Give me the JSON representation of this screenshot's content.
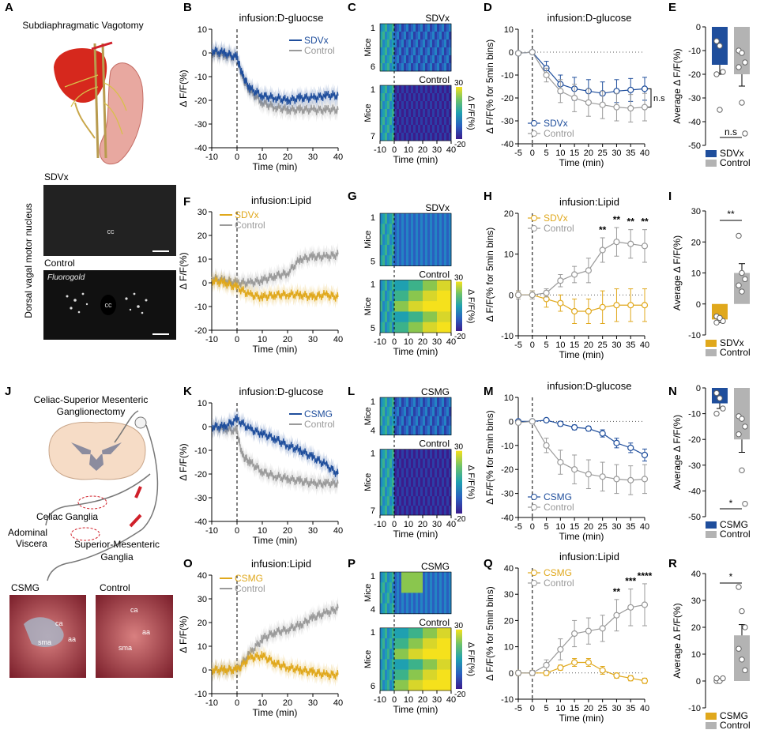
{
  "panel_letters": [
    "A",
    "B",
    "C",
    "D",
    "E",
    "F",
    "G",
    "H",
    "I",
    "J",
    "K",
    "L",
    "M",
    "N",
    "O",
    "P",
    "Q",
    "R"
  ],
  "colors": {
    "sdvx": "#1f4e9c",
    "csmg": "#1f4e9c",
    "lipid_exp": "#e0a81c",
    "control": "#9a9a9a",
    "control_bar": "#b3b3b3"
  },
  "panel_A": {
    "title": "Subdiaphragmatic Vagotomy",
    "micrograph_sdvx_label": "SDVx",
    "micrograph_control_label": "Control",
    "side_label": "Dorsal vagal motor nucleus",
    "cc_label": "cc",
    "fluorogold_label": "Fluorogold"
  },
  "panel_J": {
    "title_line1": "Celiac-Superior Mesenteric",
    "title_line2": "Ganglionectomy",
    "celiac_label": "Celiac Ganglia",
    "viscera_line1": "Adominal",
    "viscera_line2": "Viscera",
    "sm_line1": "Superior-Mesenteric",
    "sm_line2": "Ganglia",
    "photo_csmg_label": "CSMG",
    "photo_control_label": "Control",
    "photo_tags_csmg": [
      "ca",
      "sma",
      "aa"
    ],
    "photo_tags_control": [
      "ca",
      "aa",
      "sma"
    ]
  },
  "common": {
    "time_label": "Time (min)",
    "dff_label": "Δ F/F(%)",
    "bins_label": "Δ F/F(% for 5min bins)",
    "avg_label": "Average Δ F/F(%)",
    "mice_label": "Mice",
    "colorbar_label": "Δ F/F(%)",
    "colorbar_max": "30",
    "colorbar_min": "-20",
    "legend_control": "Control"
  },
  "chart_data": [
    {
      "id": "B",
      "type": "line",
      "title": "infusion:D-gluocse",
      "xlabel": "Time (min)",
      "ylabel": "Δ F/F(%)",
      "xlim": [
        -10,
        40
      ],
      "ylim": [
        -40,
        10
      ],
      "xticks": [
        -10,
        0,
        10,
        20,
        30,
        40
      ],
      "yticks": [
        -40,
        -30,
        -20,
        -10,
        0,
        10
      ],
      "series": [
        {
          "name": "SDVx",
          "x": [
            -10,
            -5,
            0,
            2,
            5,
            10,
            15,
            20,
            25,
            30,
            35,
            40
          ],
          "y": [
            1,
            0,
            -2,
            -9,
            -15,
            -18,
            -19,
            -20,
            -19,
            -19,
            -18,
            -18
          ]
        },
        {
          "name": "Control",
          "x": [
            -10,
            -5,
            0,
            2,
            5,
            10,
            15,
            20,
            25,
            30,
            35,
            40
          ],
          "y": [
            0,
            -1,
            -2,
            -10,
            -16,
            -21,
            -23,
            -24,
            -24,
            -24,
            -24,
            -24
          ]
        }
      ]
    },
    {
      "id": "C",
      "type": "heatmap",
      "groups": [
        {
          "name": "SDVx",
          "rows": 6
        },
        {
          "name": "Control",
          "rows": 7
        }
      ],
      "xlabel": "Time (min)",
      "ylabel": "Mice",
      "xlim": [
        -10,
        40
      ],
      "xticks": [
        -10,
        0,
        10,
        20,
        30,
        40
      ],
      "clim": [
        -20,
        30
      ]
    },
    {
      "id": "D",
      "type": "line",
      "title": "infusion:D-glucose",
      "xlabel": "Time (min)",
      "ylabel": "Δ F/F(% for 5min bins)",
      "xlim": [
        -5,
        40
      ],
      "ylim": [
        -40,
        10
      ],
      "xticks": [
        -5,
        0,
        5,
        10,
        15,
        20,
        25,
        30,
        35,
        40
      ],
      "yticks": [
        -40,
        -30,
        -20,
        -10,
        0,
        10
      ],
      "annotation": "n.s",
      "series": [
        {
          "name": "SDVx",
          "x": [
            -5,
            0,
            5,
            10,
            15,
            20,
            25,
            30,
            35,
            40
          ],
          "y": [
            -0.5,
            0,
            -7,
            -14,
            -16,
            -17,
            -18,
            -17,
            -16.5,
            -16
          ],
          "err": [
            0,
            0,
            3,
            4,
            5,
            5,
            5,
            5,
            5,
            5
          ]
        },
        {
          "name": "Control",
          "x": [
            -5,
            0,
            5,
            10,
            15,
            20,
            25,
            30,
            35,
            40
          ],
          "y": [
            -0.5,
            0,
            -10,
            -17,
            -20,
            -22,
            -23,
            -24,
            -24.5,
            -24
          ],
          "err": [
            0,
            0,
            3,
            5,
            6,
            6,
            6,
            6,
            6,
            6
          ]
        }
      ]
    },
    {
      "id": "E",
      "type": "bar",
      "ylabel": "Average Δ F/F(%)",
      "ylim": [
        -50,
        0
      ],
      "yticks": [
        -50,
        -40,
        -30,
        -20,
        -10,
        0
      ],
      "annotation": "n.s",
      "categories": [
        "SDVx",
        "Control"
      ],
      "values": [
        -16,
        -20
      ],
      "err": [
        4,
        5
      ],
      "points": [
        [
          -6,
          -8,
          -19,
          -20,
          -35
        ],
        [
          -10,
          -11,
          -15,
          -17,
          -32,
          -45
        ]
      ]
    },
    {
      "id": "F",
      "type": "line",
      "title": "infusion:Lipid",
      "xlabel": "Time (min)",
      "ylabel": "Δ F/F(%)",
      "xlim": [
        -10,
        40
      ],
      "ylim": [
        -20,
        30
      ],
      "xticks": [
        -10,
        0,
        10,
        20,
        30,
        40
      ],
      "yticks": [
        -20,
        -10,
        0,
        10,
        20,
        30
      ],
      "series": [
        {
          "name": "SDVx",
          "x": [
            -10,
            -5,
            0,
            5,
            10,
            15,
            20,
            25,
            30,
            35,
            40
          ],
          "y": [
            1,
            0,
            -2,
            -5,
            -6,
            -5,
            -5,
            -5,
            -6,
            -5,
            -6
          ]
        },
        {
          "name": "Control",
          "x": [
            -10,
            -5,
            0,
            5,
            10,
            15,
            20,
            25,
            30,
            35,
            40
          ],
          "y": [
            2,
            1,
            0,
            0,
            1,
            3,
            4,
            10,
            11,
            11,
            12
          ]
        }
      ]
    },
    {
      "id": "G",
      "type": "heatmap",
      "groups": [
        {
          "name": "SDVx",
          "rows": 5
        },
        {
          "name": "Control",
          "rows": 5
        }
      ],
      "xlabel": "Time (min)",
      "ylabel": "Mice",
      "xlim": [
        -10,
        40
      ],
      "xticks": [
        -10,
        0,
        10,
        20,
        30,
        40
      ],
      "clim": [
        -20,
        30
      ]
    },
    {
      "id": "H",
      "type": "line",
      "title": "infusion:Lipid",
      "xlabel": "Time (min)",
      "ylabel": "Δ F/F(% for 5min bins)",
      "xlim": [
        -5,
        40
      ],
      "ylim": [
        -10,
        20
      ],
      "xticks": [
        -5,
        0,
        5,
        10,
        15,
        20,
        25,
        30,
        35,
        40
      ],
      "yticks": [
        -10,
        0,
        10,
        20
      ],
      "stars": [
        {
          "x": 25,
          "label": "**"
        },
        {
          "x": 30,
          "label": "**"
        },
        {
          "x": 35,
          "label": "**"
        },
        {
          "x": 40,
          "label": "**"
        }
      ],
      "series": [
        {
          "name": "SDVx",
          "x": [
            -5,
            0,
            5,
            10,
            15,
            20,
            25,
            30,
            35,
            40
          ],
          "y": [
            0,
            0,
            -1,
            -2,
            -4,
            -4,
            -3,
            -2.5,
            -2.5,
            -2.5
          ],
          "err": [
            1,
            1,
            2,
            2,
            3,
            3,
            4,
            4,
            4,
            4
          ]
        },
        {
          "name": "Control",
          "x": [
            -5,
            0,
            5,
            10,
            15,
            20,
            25,
            30,
            35,
            40
          ],
          "y": [
            0,
            0,
            0.5,
            3.5,
            5,
            6,
            11,
            13,
            12.5,
            12
          ],
          "err": [
            1,
            1,
            1,
            1.5,
            2,
            3,
            3,
            3.5,
            3.5,
            4
          ]
        }
      ]
    },
    {
      "id": "I",
      "type": "bar",
      "ylabel": "Average Δ F/F(%)",
      "ylim": [
        -10,
        30
      ],
      "yticks": [
        -10,
        0,
        10,
        20,
        30
      ],
      "annotation": "**",
      "categories": [
        "SDVx",
        "Control"
      ],
      "values": [
        -5,
        10
      ],
      "err": [
        1,
        3
      ],
      "points": [
        [
          -4,
          -5,
          -5.5,
          -6,
          -4.5
        ],
        [
          22,
          10,
          8,
          6,
          4
        ]
      ]
    },
    {
      "id": "K",
      "type": "line",
      "title": "infusion:D-glucose",
      "xlabel": "Time (min)",
      "ylabel": "Δ F/F(%)",
      "xlim": [
        -10,
        40
      ],
      "ylim": [
        -40,
        10
      ],
      "xticks": [
        -10,
        0,
        10,
        20,
        30,
        40
      ],
      "yticks": [
        -40,
        -30,
        -20,
        -10,
        0,
        10
      ],
      "series": [
        {
          "name": "CSMG",
          "x": [
            -10,
            -5,
            0,
            5,
            10,
            15,
            20,
            25,
            30,
            35,
            40
          ],
          "y": [
            0,
            0,
            3,
            -1,
            -3,
            -5,
            -8,
            -10,
            -13,
            -16,
            -20
          ]
        },
        {
          "name": "Control",
          "x": [
            -10,
            -5,
            0,
            2,
            5,
            10,
            15,
            20,
            25,
            30,
            35,
            40
          ],
          "y": [
            0,
            -1,
            -2,
            -12,
            -15,
            -19,
            -21,
            -22,
            -23,
            -24,
            -24,
            -24
          ]
        }
      ]
    },
    {
      "id": "L",
      "type": "heatmap",
      "groups": [
        {
          "name": "CSMG",
          "rows": 4
        },
        {
          "name": "Control",
          "rows": 7
        }
      ],
      "xlabel": "Time (min)",
      "ylabel": "Mice",
      "xlim": [
        -10,
        40
      ],
      "xticks": [
        -10,
        0,
        10,
        20,
        30,
        40
      ],
      "clim": [
        -20,
        30
      ]
    },
    {
      "id": "M",
      "type": "line",
      "title": "infusion:D-glucose",
      "xlabel": "Time (min)",
      "ylabel": "Δ F/F(% for 5min bins)",
      "xlim": [
        -5,
        40
      ],
      "ylim": [
        -40,
        10
      ],
      "xticks": [
        -5,
        0,
        5,
        10,
        15,
        20,
        25,
        30,
        35,
        40
      ],
      "yticks": [
        -40,
        -30,
        -20,
        -10,
        0,
        10
      ],
      "series": [
        {
          "name": "CSMG",
          "x": [
            -5,
            0,
            5,
            10,
            15,
            20,
            25,
            30,
            35,
            40
          ],
          "y": [
            0,
            0,
            0.5,
            -1,
            -2.5,
            -3,
            -5,
            -9,
            -11,
            -14
          ],
          "err": [
            0,
            0,
            0.5,
            1,
            1,
            1,
            1.5,
            2,
            2,
            2.5
          ]
        },
        {
          "name": "Control",
          "x": [
            -5,
            0,
            5,
            10,
            15,
            20,
            25,
            30,
            35,
            40
          ],
          "y": [
            -0.5,
            0,
            -10,
            -17,
            -20,
            -22,
            -23,
            -24,
            -24.5,
            -24
          ],
          "err": [
            0,
            0,
            3,
            5,
            6,
            6,
            6,
            6,
            6,
            6
          ]
        }
      ]
    },
    {
      "id": "N",
      "type": "bar",
      "ylabel": "Average Δ F/F(%)",
      "ylim": [
        -50,
        0
      ],
      "yticks": [
        -50,
        -40,
        -30,
        -20,
        -10,
        0
      ],
      "annotation": "*",
      "categories": [
        "CSMG",
        "Control"
      ],
      "values": [
        -6,
        -20
      ],
      "err": [
        2,
        5
      ],
      "points": [
        [
          -2,
          -4,
          -8,
          -10
        ],
        [
          -11,
          -12,
          -15,
          -18,
          -32,
          -45
        ]
      ]
    },
    {
      "id": "O",
      "type": "line",
      "title": "infusion:Lipid",
      "xlabel": "Time (min)",
      "ylabel": "Δ F/F(%)",
      "xlim": [
        -10,
        40
      ],
      "ylim": [
        -10,
        40
      ],
      "xticks": [
        -10,
        0,
        10,
        20,
        30,
        40
      ],
      "yticks": [
        -10,
        0,
        10,
        20,
        30,
        40
      ],
      "series": [
        {
          "name": "CSMG",
          "x": [
            -10,
            -5,
            0,
            5,
            10,
            15,
            20,
            25,
            30,
            35,
            40
          ],
          "y": [
            0,
            0,
            0,
            5,
            6,
            3,
            1,
            0,
            -1,
            -2,
            -2
          ]
        },
        {
          "name": "Control",
          "x": [
            -10,
            -5,
            0,
            5,
            10,
            15,
            20,
            25,
            30,
            35,
            40
          ],
          "y": [
            0,
            0,
            0,
            7,
            13,
            16,
            17,
            19,
            22,
            24,
            26
          ]
        }
      ]
    },
    {
      "id": "P",
      "type": "heatmap",
      "groups": [
        {
          "name": "CSMG",
          "rows": 4
        },
        {
          "name": "Control",
          "rows": 6
        }
      ],
      "xlabel": "Time (min)",
      "ylabel": "Mice",
      "xlim": [
        -10,
        40
      ],
      "xticks": [
        -10,
        0,
        10,
        20,
        30,
        40
      ],
      "clim": [
        -20,
        30
      ]
    },
    {
      "id": "Q",
      "type": "line",
      "title": "infusion:Lipid",
      "xlabel": "Time (min)",
      "ylabel": "Δ F/F(% for 5min bins)",
      "xlim": [
        -5,
        40
      ],
      "ylim": [
        -10,
        40
      ],
      "xticks": [
        -5,
        0,
        5,
        10,
        15,
        20,
        25,
        30,
        35,
        40
      ],
      "yticks": [
        -10,
        0,
        10,
        20,
        30,
        40
      ],
      "stars": [
        {
          "x": 30,
          "label": "**"
        },
        {
          "x": 35,
          "label": "***"
        },
        {
          "x": 40,
          "label": "****"
        }
      ],
      "series": [
        {
          "name": "CSMG",
          "x": [
            -5,
            0,
            5,
            10,
            15,
            20,
            25,
            30,
            35,
            40
          ],
          "y": [
            0,
            0,
            0,
            2,
            4,
            4,
            1,
            -1,
            -2,
            -3
          ],
          "err": [
            1,
            1,
            1,
            1,
            1.5,
            1.5,
            1.5,
            1,
            1,
            1
          ]
        },
        {
          "name": "Control",
          "x": [
            -5,
            0,
            5,
            10,
            15,
            20,
            25,
            30,
            35,
            40
          ],
          "y": [
            0,
            0,
            3,
            9,
            15,
            16,
            17,
            22,
            25,
            26
          ],
          "err": [
            1,
            1,
            2,
            4,
            5,
            5,
            5,
            6,
            7,
            8
          ]
        }
      ]
    },
    {
      "id": "R",
      "type": "bar",
      "ylabel": "Average Δ F/F(%)",
      "ylim": [
        -10,
        40
      ],
      "yticks": [
        -10,
        0,
        10,
        20,
        30,
        40
      ],
      "annotation": "*",
      "categories": [
        "CSMG",
        "Control"
      ],
      "values": [
        0,
        17
      ],
      "err": [
        1,
        4
      ],
      "points": [
        [
          0,
          0,
          1,
          1
        ],
        [
          35,
          26,
          20,
          12,
          8,
          4
        ]
      ]
    }
  ]
}
